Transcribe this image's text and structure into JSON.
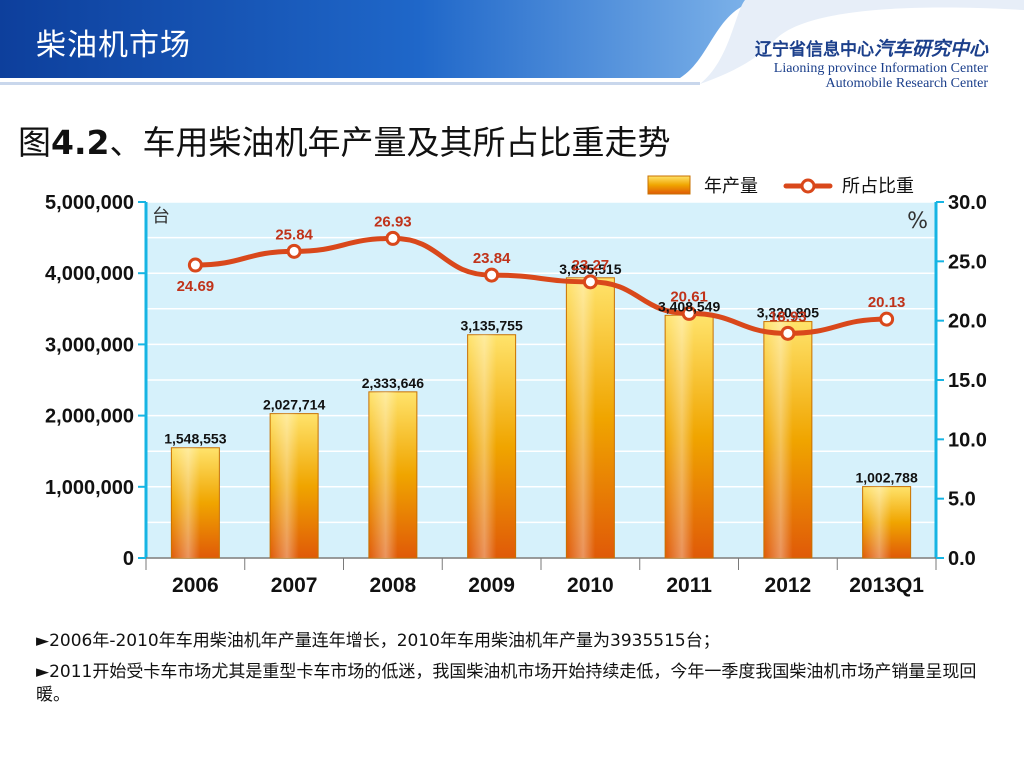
{
  "header": {
    "slide_title": "柴油机市场",
    "org_cn_prefix": "辽宁省信息中心",
    "org_cn_strong": "汽车研究中心",
    "org_en_line1": "Liaoning province Information Center",
    "org_en_line2": "Automobile Research Center"
  },
  "figure": {
    "title_prefix": "图",
    "title_number": "4.2",
    "title_suffix": "、车用柴油机年产量及其所占比重走势"
  },
  "chart_data": {
    "type": "bar+line",
    "categories": [
      "2006",
      "2007",
      "2008",
      "2009",
      "2010",
      "2011",
      "2012",
      "2013Q1"
    ],
    "series": [
      {
        "name": "年产量",
        "type": "bar",
        "axis": "left",
        "values": [
          1548553,
          2027714,
          2333646,
          3135755,
          3935515,
          3408549,
          3320805,
          1002788
        ],
        "labels": [
          "1,548,553",
          "2,027,714",
          "2,333,646",
          "3,135,755",
          "3,935,515",
          "3,408,549",
          "3,320,805",
          "1,002,788"
        ]
      },
      {
        "name": "所占比重",
        "type": "line",
        "axis": "right",
        "values": [
          24.69,
          25.84,
          26.93,
          23.84,
          23.27,
          20.61,
          18.93,
          20.13
        ],
        "labels": [
          "24.69",
          "25.84",
          "26.93",
          "23.84",
          "23.27",
          "20.61",
          "18.93",
          "20.13"
        ]
      }
    ],
    "y_left": {
      "unit": "台",
      "min": 0,
      "max": 5000000,
      "ticks": [
        "0",
        "1,000,000",
        "2,000,000",
        "3,000,000",
        "4,000,000",
        "5,000,000"
      ]
    },
    "y_right": {
      "unit": "%",
      "min": 0,
      "max": 30,
      "ticks": [
        "0.0",
        "5.0",
        "10.0",
        "15.0",
        "20.0",
        "25.0",
        "30.0"
      ]
    },
    "grid": true,
    "legend_position": "top-right",
    "colors": {
      "bar": "#f0a500",
      "bar_light": "#ffe36b",
      "bar_dark": "#e05a08",
      "line": "#d9481b",
      "plot_bg": "#d6f1fb",
      "axis": "#16b4e3"
    }
  },
  "notes": {
    "bullet1": "►2006年-2010年车用柴油机年产量连年增长，2010年车用柴油机年产量为3935515台；",
    "bullet2": "►2011开始受卡车市场尤其是重型卡车市场的低迷，我国柴油机市场开始持续走低，今年一季度我国柴油机市场产销量呈现回暖。"
  }
}
